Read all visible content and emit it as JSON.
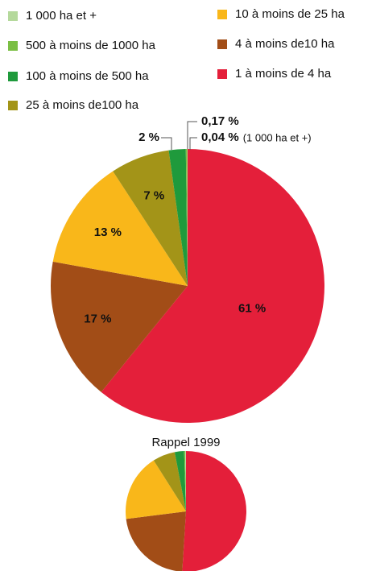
{
  "chart_data": [
    {
      "type": "pie",
      "categories": [
        "1 000 ha et +",
        "500 à moins de 1000 ha",
        "100 à moins de 500 ha",
        "25 à moins de100 ha",
        "10 à moins de 25 ha",
        "4 à moins de10 ha",
        "1 à moins de 4 ha"
      ],
      "values": [
        0.04,
        0.17,
        2,
        7,
        13,
        17,
        61
      ],
      "value_labels": [
        "0,04 %",
        "0,17 %",
        "2 %",
        "7 %",
        "13 %",
        "17 %",
        "61 %"
      ],
      "colors": [
        "#b5d99c",
        "#7bbf44",
        "#1f9a3c",
        "#a39418",
        "#f9b71a",
        "#a24d17",
        "#e41f3a"
      ],
      "annotation": "(1 000 ha et +)"
    },
    {
      "type": "pie",
      "title": "Rappel 1999",
      "values": [
        0.2,
        0.3,
        2.5,
        6,
        18,
        22,
        51
      ]
    }
  ]
}
